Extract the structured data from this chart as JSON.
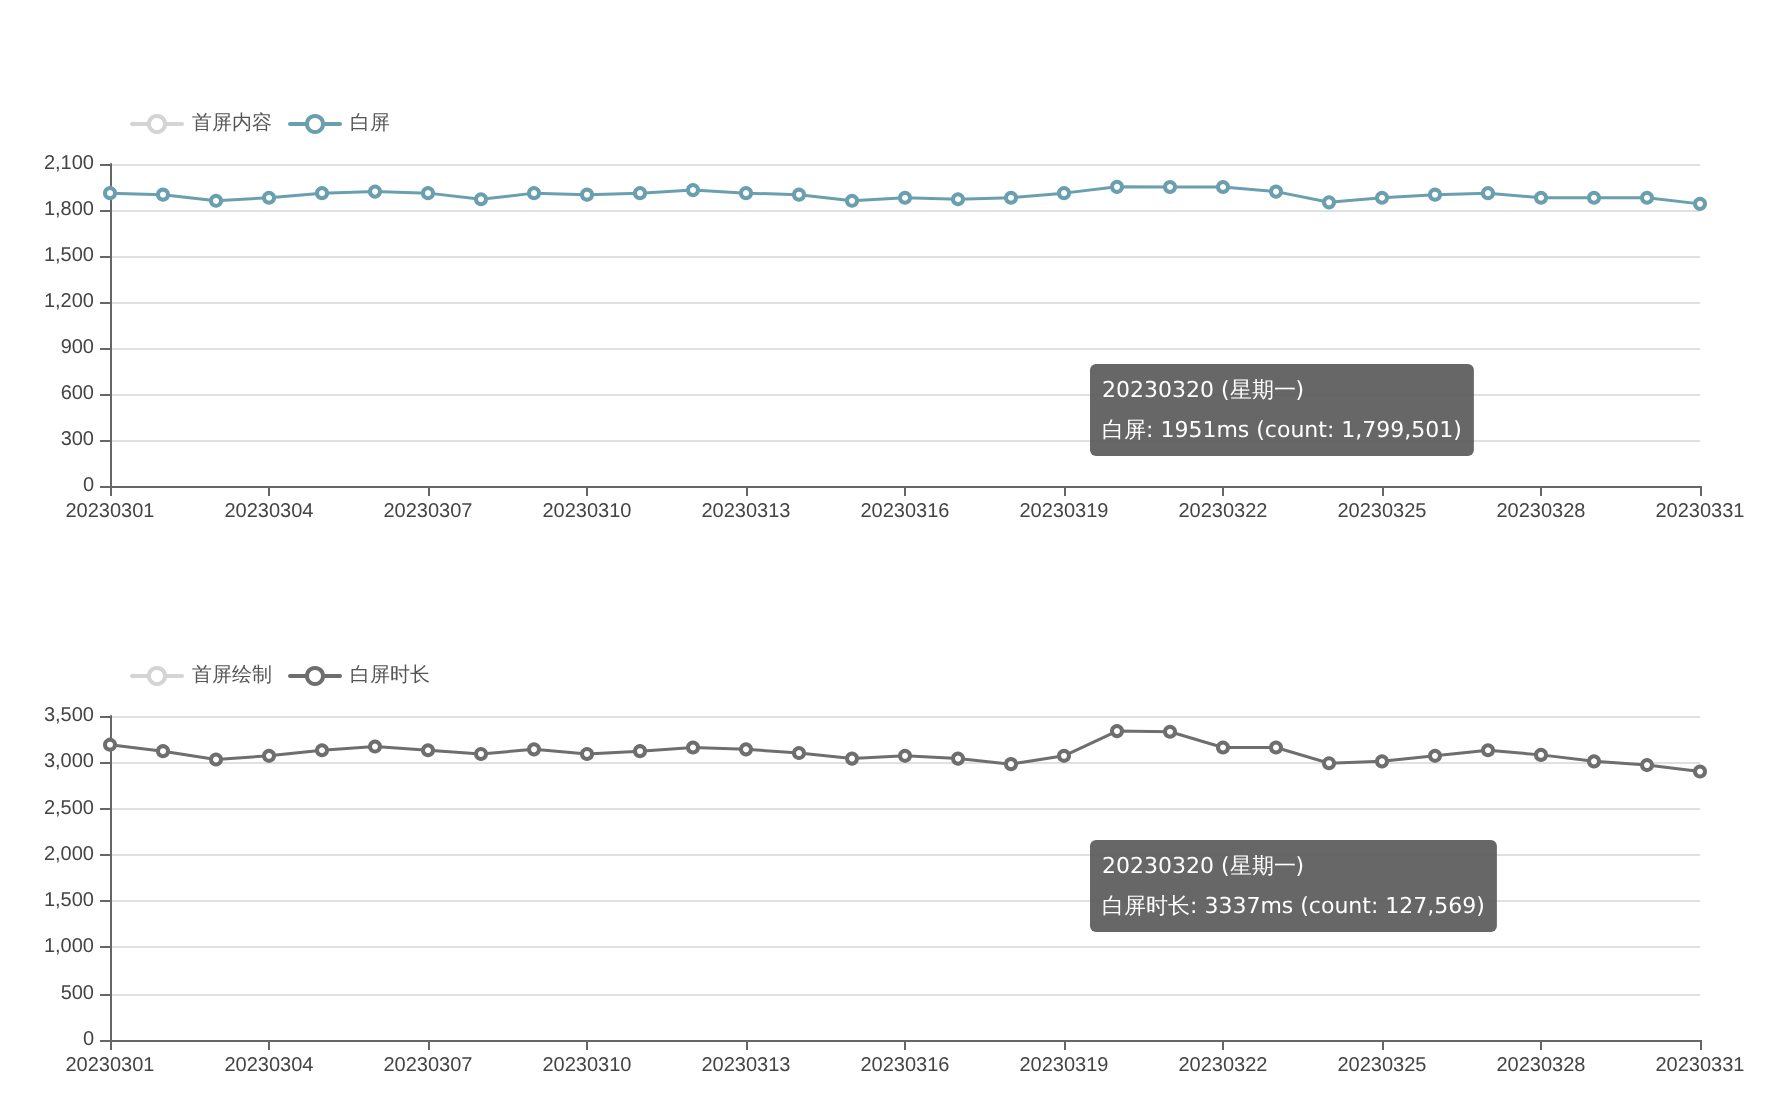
{
  "chart_data": [
    {
      "type": "line",
      "categories": [
        "20230301",
        null,
        null,
        "20230304",
        null,
        null,
        "20230307",
        null,
        null,
        "20230310",
        null,
        null,
        "20230313",
        null,
        null,
        "20230316",
        null,
        null,
        "20230319",
        null,
        null,
        "20230322",
        null,
        null,
        "20230325",
        null,
        null,
        "20230328",
        null,
        null,
        "20230331"
      ],
      "series": [
        {
          "name": "首屏内容",
          "color": "#d4d4d4",
          "values": [
            null,
            null,
            null,
            null,
            null,
            null,
            null,
            null,
            null,
            null,
            null,
            null,
            null,
            null,
            null,
            null,
            null,
            null,
            null,
            null,
            null,
            null,
            null,
            null,
            null,
            null,
            null,
            null,
            null,
            null,
            null
          ]
        },
        {
          "name": "白屏",
          "color": "#6a9fb0",
          "values": [
            1910,
            1900,
            1860,
            1880,
            1910,
            1920,
            1910,
            1870,
            1910,
            1900,
            1910,
            1930,
            1910,
            1900,
            1860,
            1880,
            1870,
            1880,
            1910,
            1951,
            1950,
            1950,
            1920,
            1850,
            1880,
            1900,
            1910,
            1880,
            1880,
            1880,
            1840
          ]
        }
      ],
      "ylim": [
        0,
        2100
      ],
      "yticks": [
        0,
        {
          "value": 300,
          "label": "300"
        },
        {
          "value": 600,
          "label": "600"
        },
        {
          "value": 900,
          "label": "900"
        },
        {
          "value": 1200,
          "label": "1,200"
        },
        {
          "value": 1500,
          "label": "1,500"
        },
        {
          "value": 1800,
          "label": "1,800"
        },
        {
          "value": 2100,
          "label": "2,100"
        }
      ],
      "annotations": [
        "20230320 (星期一)",
        "白屏: 1951ms (count: 1,799,501)"
      ],
      "grid": "y",
      "legend": "top left",
      "marker": "circle",
      "line_style": "solid"
    },
    {
      "type": "line",
      "categories": [
        "20230301",
        null,
        null,
        "20230304",
        null,
        null,
        "20230307",
        null,
        null,
        "20230310",
        null,
        null,
        "20230313",
        null,
        null,
        "20230316",
        null,
        null,
        "20230319",
        null,
        null,
        "20230322",
        null,
        null,
        "20230325",
        null,
        null,
        "20230328",
        null,
        null,
        "20230331"
      ],
      "series": [
        {
          "name": "首屏绘制",
          "color": "#d4d4d4",
          "values": [
            null,
            null,
            null,
            null,
            null,
            null,
            null,
            null,
            null,
            null,
            null,
            null,
            null,
            null,
            null,
            null,
            null,
            null,
            null,
            null,
            null,
            null,
            null,
            null,
            null,
            null,
            null,
            null,
            null,
            null,
            null
          ]
        },
        {
          "name": "白屏时长",
          "color": "#6e6e6e",
          "values": [
            3190,
            3120,
            3030,
            3070,
            3130,
            3170,
            3130,
            3090,
            3140,
            3090,
            3120,
            3160,
            3140,
            3100,
            3040,
            3070,
            3040,
            2980,
            3070,
            3337,
            3330,
            3160,
            3160,
            2990,
            3010,
            3070,
            3130,
            3080,
            3010,
            2970,
            2900
          ]
        }
      ],
      "ylim": [
        0,
        3500
      ],
      "yticks": [
        0,
        {
          "value": 500,
          "label": "500"
        },
        {
          "value": 1000,
          "label": "1,000"
        },
        {
          "value": 1500,
          "label": "1,500"
        },
        {
          "value": 2000,
          "label": "2,000"
        },
        {
          "value": 2500,
          "label": "2,500"
        },
        {
          "value": 3000,
          "label": "3,000"
        },
        {
          "value": 3500,
          "label": "3,500"
        }
      ],
      "annotations": [
        "20230320 (星期一)",
        "白屏时长: 3337ms (count: 127,569)"
      ],
      "grid": "y",
      "legend": "top left",
      "marker": "circle",
      "line_style": "solid"
    }
  ]
}
